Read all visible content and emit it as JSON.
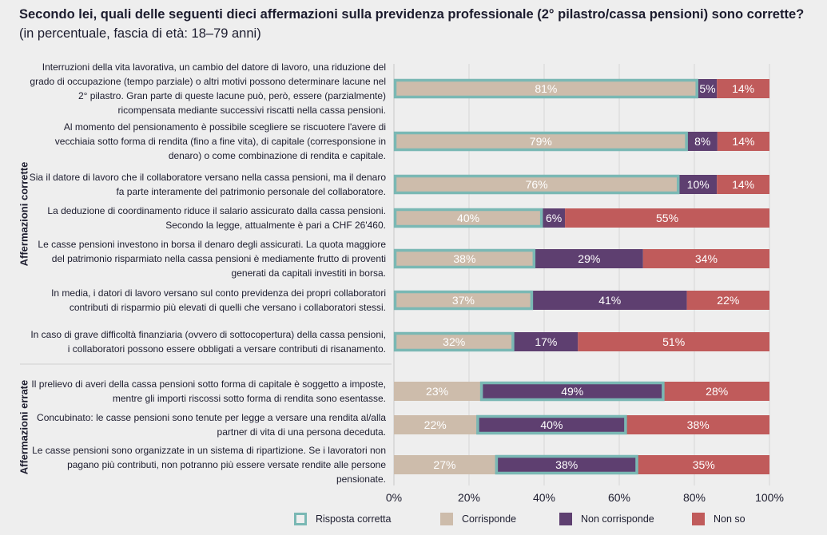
{
  "title": {
    "bold": "Secondo lei, quali delle seguenti dieci affermazioni sulla previdenza professionale (2° pilastro/cassa pensioni) sono corrette?",
    "normal": "(in percentuale, fascia di età: 18–79 anni)"
  },
  "colors": {
    "corrisponde": "#cdbcab",
    "non_corrisponde": "#5e3f70",
    "non_so": "#c05b5b",
    "risposta_corretta": "#7ab8b4",
    "background": "#eeeeee"
  },
  "chart_data": {
    "type": "bar",
    "orientation": "horizontal",
    "stacked": true,
    "xlim": [
      0,
      100
    ],
    "x_ticks": [
      "0%",
      "20%",
      "40%",
      "60%",
      "80%",
      "100%"
    ],
    "grid": true,
    "legend_placement": "bottom",
    "legend": [
      "Risposta corretta",
      "Corrisponde",
      "Non corrisponde",
      "Non so"
    ],
    "groups": [
      {
        "label": "Affermazioni corrette",
        "correct_series": "Corrisponde"
      },
      {
        "label": "Affermazioni errate",
        "correct_series": "Non corrisponde"
      }
    ],
    "categories": [
      {
        "group": 0,
        "text": "Interruzioni della vita lavorativa, un cambio del datore di lavoro, una riduzione del grado di occupazione (tempo parziale) o altri motivi possono determinare lacune nel 2° pilastro. Gran parte di queste lacune può, però, essere (parzialmente) ricompensata mediante successivi riscatti nella cassa pensioni."
      },
      {
        "group": 0,
        "text": "Al momento del pensionamento è possibile scegliere se riscuotere l'avere di vecchiaia sotto forma di rendita (fino a fine vita), di capitale (corresponsione in denaro) o come combinazione di rendita e capitale."
      },
      {
        "group": 0,
        "text": "Sia il datore di lavoro che il collaboratore versano nella cassa pensioni, ma il denaro fa parte interamente del patrimonio personale del collaboratore."
      },
      {
        "group": 0,
        "text": "La deduzione di coordinamento riduce il salario assicurato dalla cassa pensioni. Secondo la legge, attualmente è pari a CHF 26'460."
      },
      {
        "group": 0,
        "text": "Le casse pensioni investono in borsa il denaro degli assicurati. La quota maggiore del patrimonio risparmiato nella cassa pensioni è mediamente frutto di proventi generati da capitali investiti in borsa."
      },
      {
        "group": 0,
        "text": "In media, i datori di lavoro versano sul conto previdenza dei propri collaboratori contributi di risparmio più elevati di quelli che versano i collaboratori stessi."
      },
      {
        "group": 0,
        "text": "In caso di grave difficoltà finanziaria (ovvero di sottocopertura) della cassa pensioni, i collaboratori possono essere obbligati a versare contributi di risanamento."
      },
      {
        "group": 1,
        "text": "Il prelievo di averi della cassa pensioni sotto forma di capitale è soggetto a imposte, mentre gli importi riscossi sotto forma di rendita sono esentasse."
      },
      {
        "group": 1,
        "text": "Concubinato: le casse pensioni sono tenute per legge a versare una rendita al/alla partner di vita di una persona deceduta."
      },
      {
        "group": 1,
        "text": "Le casse pensioni sono organizzate in un sistema di ripartizione. Se i lavoratori non pagano più contributi, non potranno più essere versate rendite alle persone pensionate."
      }
    ],
    "series": [
      {
        "name": "Corrisponde",
        "values": [
          81,
          79,
          76,
          40,
          38,
          37,
          32,
          23,
          22,
          27
        ]
      },
      {
        "name": "Non corrisponde",
        "values": [
          5,
          8,
          10,
          6,
          29,
          41,
          17,
          49,
          40,
          38
        ]
      },
      {
        "name": "Non so",
        "values": [
          14,
          14,
          14,
          55,
          34,
          22,
          51,
          28,
          38,
          35
        ]
      }
    ]
  }
}
